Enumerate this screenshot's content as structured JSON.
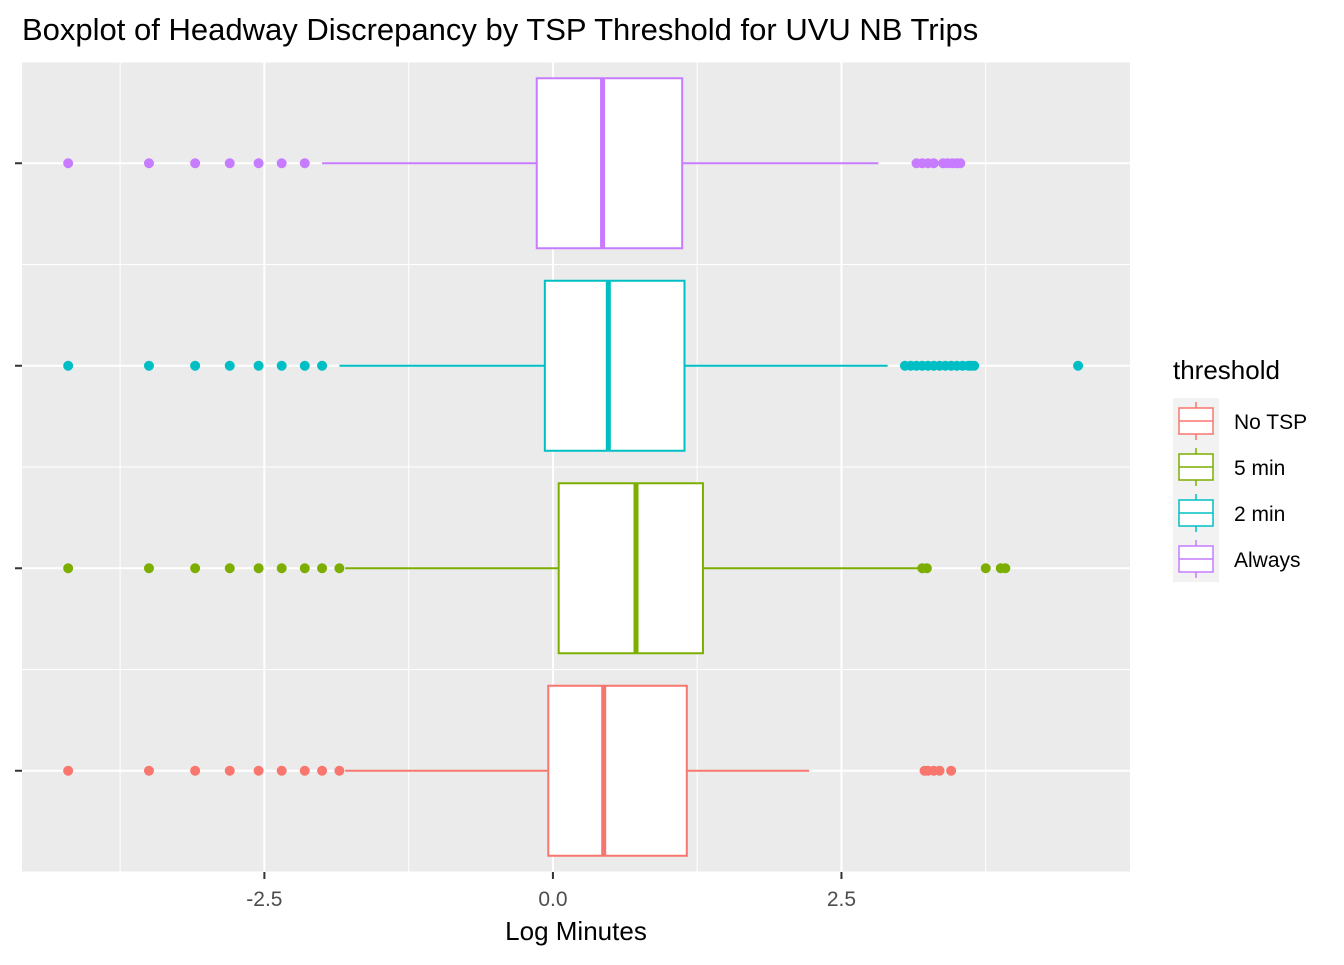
{
  "chart_data": {
    "type": "boxplot",
    "title": "Boxplot of Headway Discrepancy by TSP Threshold for UVU NB Trips",
    "xlabel": "Log Minutes",
    "ylabel": "",
    "xlim": [
      -4.6,
      5.0
    ],
    "x_ticks": [
      -2.5,
      0.0,
      2.5
    ],
    "x_tick_labels": [
      "-2.5",
      "0.0",
      "2.5"
    ],
    "grid": true,
    "legend_position": "right",
    "legend_title": "threshold",
    "series": [
      {
        "name": "No TSP",
        "color": "#F8766D",
        "q1": -0.04,
        "median": 0.44,
        "q3": 1.16,
        "whisker_low": -1.8,
        "whisker_high": 2.22,
        "outliers": [
          -4.2,
          -3.5,
          -3.1,
          -2.8,
          -2.55,
          -2.35,
          -2.15,
          -2.0,
          -1.85,
          3.22,
          3.25,
          3.3,
          3.35,
          3.45
        ]
      },
      {
        "name": "5 min",
        "color": "#7CAE00",
        "q1": 0.05,
        "median": 0.72,
        "q3": 1.3,
        "whisker_low": -1.8,
        "whisker_high": 3.22,
        "outliers": [
          -4.2,
          -3.5,
          -3.1,
          -2.8,
          -2.55,
          -2.35,
          -2.15,
          -2.0,
          -1.85,
          3.2,
          3.24,
          3.75,
          3.88,
          3.92
        ]
      },
      {
        "name": "2 min",
        "color": "#00BFC4",
        "q1": -0.07,
        "median": 0.48,
        "q3": 1.14,
        "whisker_low": -1.85,
        "whisker_high": 2.9,
        "outliers": [
          -4.2,
          -3.5,
          -3.1,
          -2.8,
          -2.55,
          -2.35,
          -2.15,
          -2.0,
          3.05,
          3.1,
          3.15,
          3.2,
          3.25,
          3.3,
          3.35,
          3.4,
          3.45,
          3.5,
          3.55,
          3.6,
          3.62,
          3.65,
          4.55
        ]
      },
      {
        "name": "Always",
        "color": "#C77CFF",
        "q1": -0.14,
        "median": 0.43,
        "q3": 1.12,
        "whisker_low": -2.0,
        "whisker_high": 2.82,
        "outliers": [
          -4.2,
          -3.5,
          -3.1,
          -2.8,
          -2.55,
          -2.35,
          -2.15,
          3.15,
          3.2,
          3.25,
          3.3,
          3.38,
          3.42,
          3.46,
          3.5,
          3.53
        ]
      }
    ]
  }
}
